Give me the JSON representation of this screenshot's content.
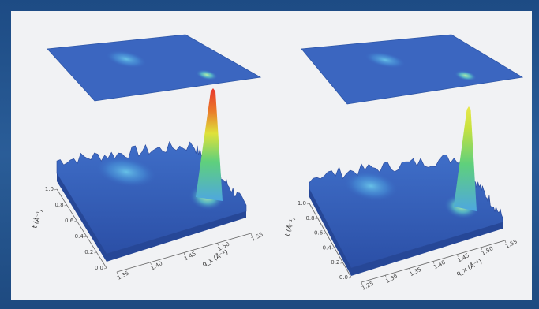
{
  "chart_data": [
    {
      "type": "surface3d",
      "title": "",
      "xlabel": "q_x (Å⁻¹)",
      "ylabel": "t (Å⁻¹)",
      "x_ticks": [
        "1.35",
        "1.40",
        "1.45",
        "1.50",
        "1.55"
      ],
      "y_ticks": [
        "0.0",
        "0.2",
        "0.4",
        "0.6",
        "0.8",
        "1.0"
      ],
      "projection_plane": "top",
      "peaks": [
        {
          "x": 1.49,
          "y": 0.45,
          "relative_height": 1.0
        },
        {
          "x": 1.39,
          "y": 0.75,
          "relative_height": 0.2
        }
      ],
      "colormap": [
        "#2b4fa6",
        "#3f86d8",
        "#55c9e8",
        "#5fd07c",
        "#e8e23a",
        "#e8362c"
      ]
    },
    {
      "type": "surface3d",
      "title": "",
      "xlabel": "q_x (Å⁻¹)",
      "ylabel": "t (Å⁻¹)",
      "x_ticks": [
        "1.25",
        "1.30",
        "1.35",
        "1.40",
        "1.45",
        "1.50",
        "1.55"
      ],
      "y_ticks": [
        "0.0",
        "0.2",
        "0.4",
        "0.6",
        "0.8",
        "1.0"
      ],
      "projection_plane": "top",
      "peaks": [
        {
          "x": 1.48,
          "y": 0.45,
          "relative_height": 0.75
        },
        {
          "x": 1.36,
          "y": 0.75,
          "relative_height": 0.2
        }
      ],
      "colormap": [
        "#2b4fa6",
        "#3f86d8",
        "#55c9e8",
        "#5fd07c",
        "#e8e23a",
        "#e8362c"
      ]
    }
  ]
}
